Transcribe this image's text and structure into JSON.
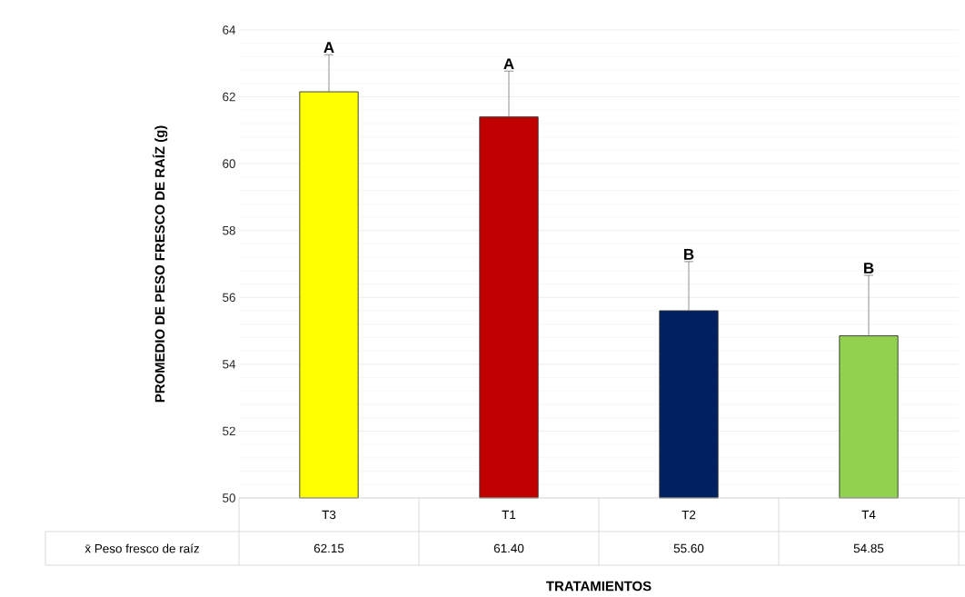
{
  "chart_data": {
    "type": "bar",
    "xlabel": "TRATAMIENTOS",
    "ylabel": "PROMEDIO DE PESO FRESCO DE RAÍZ (g)",
    "categories": [
      "T3",
      "T1",
      "T2",
      "T4"
    ],
    "series": [
      {
        "name": "x̄ Peso fresco de raíz",
        "colors": [
          "#ffff00",
          "#c00000",
          "#002060",
          "#92d050"
        ],
        "values": [
          62.15,
          61.4,
          55.6,
          54.85
        ],
        "errors": [
          [
            62.15,
            63.26
          ],
          [
            61.4,
            62.77
          ],
          [
            55.6,
            57.07
          ],
          [
            54.85,
            56.66
          ]
        ],
        "value_labels": [
          "62.15",
          "61.40",
          "55.60",
          "54.85"
        ]
      }
    ],
    "ylim": [
      50,
      64
    ],
    "yticks": [
      50,
      52,
      54,
      56,
      58,
      60,
      62,
      64
    ],
    "grid": "y",
    "annotations": [
      {
        "text": "A",
        "x": "T3",
        "y": 63.26
      },
      {
        "text": "A",
        "x": "T1",
        "y": 62.77
      },
      {
        "text": "B",
        "x": "T2",
        "y": 57.07
      },
      {
        "text": "B",
        "x": "T4",
        "y": 56.66
      }
    ]
  }
}
